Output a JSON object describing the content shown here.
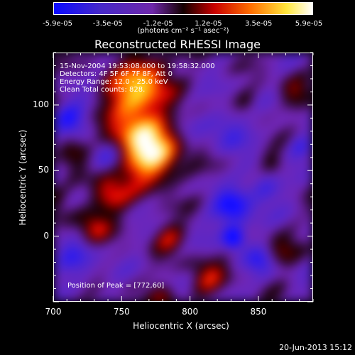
{
  "chart_data": {
    "type": "heatmap",
    "title": "Reconstructed RHESSI Image",
    "xlabel": "Heliocentric X (arcsec)",
    "ylabel": "Heliocentric Y (arcsec)",
    "xlim": [
      700,
      890
    ],
    "ylim": [
      -50,
      140
    ],
    "x_ticks": [
      "700",
      "750",
      "800",
      "850"
    ],
    "y_ticks": [
      "0",
      "50",
      "100"
    ],
    "colorbar": {
      "label": "(photons cm⁻² s⁻¹ asec⁻²)",
      "ticks": [
        "-5.9e-05",
        "-3.5e-05",
        "-1.2e-05",
        "1.2e-05",
        "3.5e-05",
        "5.9e-05"
      ],
      "range": [
        -5.9e-05,
        5.9e-05
      ]
    },
    "annotations": [
      "15-Nov-2004 19:53:08.000 to 19:58:32.000",
      "Detectors: 4F 5F 6F 7F 8F, Att 0",
      "Energy Range: 12.0 - 25.0 keV",
      "Clean    Total counts: 828."
    ],
    "peak_label": "Position of Peak = [772,60]",
    "sources": [
      {
        "x": 772,
        "y": 60,
        "value": 5.9e-05,
        "radius": 14
      },
      {
        "x": 762,
        "y": 80,
        "value": 4.5e-05,
        "radius": 14
      },
      {
        "x": 756,
        "y": 108,
        "value": 4.2e-05,
        "radius": 13
      },
      {
        "x": 770,
        "y": 122,
        "value": 3.8e-05,
        "radius": 12
      },
      {
        "x": 740,
        "y": 32,
        "value": 3.6e-05,
        "radius": 10
      },
      {
        "x": 728,
        "y": 8,
        "value": 3.2e-05,
        "radius": 8
      },
      {
        "x": 712,
        "y": 70,
        "value": 2.8e-05,
        "radius": 8
      },
      {
        "x": 784,
        "y": 0,
        "value": 2.6e-05,
        "radius": 8
      },
      {
        "x": 812,
        "y": -32,
        "value": 2.8e-05,
        "radius": 9
      },
      {
        "x": 780,
        "y": -48,
        "value": 2.2e-05,
        "radius": 8
      },
      {
        "x": 866,
        "y": -12,
        "value": 2e-05,
        "radius": 8
      },
      {
        "x": 860,
        "y": 56,
        "value": 1.8e-05,
        "radius": 7
      },
      {
        "x": 876,
        "y": 110,
        "value": 1.8e-05,
        "radius": 8
      },
      {
        "x": 842,
        "y": 102,
        "value": 1.5e-05,
        "radius": 6
      },
      {
        "x": 700,
        "y": 30,
        "value": 1.4e-05,
        "radius": 6
      },
      {
        "x": 712,
        "y": 88,
        "value": -3.8e-05,
        "radius": 9
      },
      {
        "x": 832,
        "y": 20,
        "value": -4.2e-05,
        "radius": 10
      },
      {
        "x": 832,
        "y": -2,
        "value": -5.9e-05,
        "radius": 5
      },
      {
        "x": 855,
        "y": 40,
        "value": -3e-05,
        "radius": 8
      },
      {
        "x": 852,
        "y": -20,
        "value": -3e-05,
        "radius": 7
      },
      {
        "x": 828,
        "y": 82,
        "value": -2.6e-05,
        "radius": 10
      },
      {
        "x": 880,
        "y": 70,
        "value": -2.4e-05,
        "radius": 6
      },
      {
        "x": 738,
        "y": 62,
        "value": -2.2e-05,
        "radius": 7
      },
      {
        "x": 716,
        "y": -20,
        "value": -2.4e-05,
        "radius": 10
      }
    ]
  },
  "timestamp": "20-Jun-2013 15:12"
}
